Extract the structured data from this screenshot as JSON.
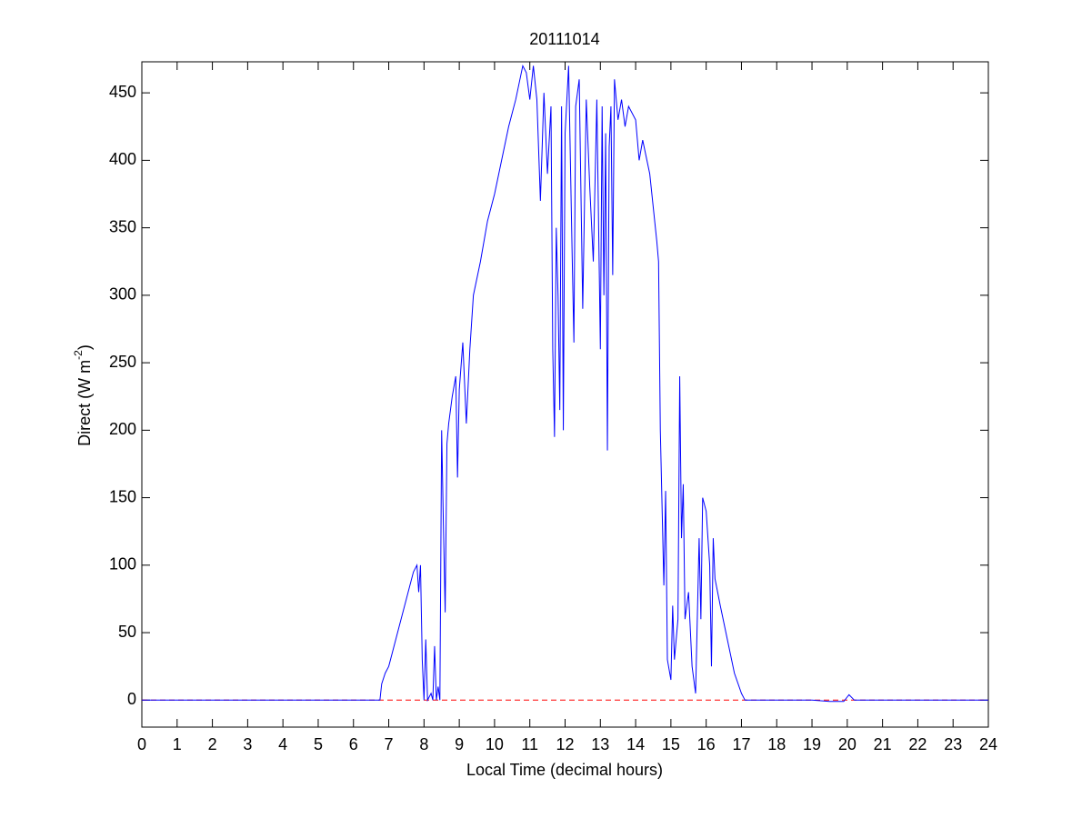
{
  "chart_data": {
    "type": "line",
    "title": "20111014",
    "xlabel": "Local Time (decimal hours)",
    "ylabel": {
      "text": "Direct (W m",
      "sup": "-2",
      "end": ")"
    },
    "color": "#0000ff",
    "x": [
      0,
      0.5,
      1,
      1.5,
      2,
      2.5,
      3,
      3.5,
      4,
      4.5,
      5,
      5.5,
      6,
      6.5,
      6.75,
      6.8,
      6.9,
      7.0,
      7.1,
      7.3,
      7.5,
      7.7,
      7.8,
      7.85,
      7.9,
      7.95,
      8.0,
      8.05,
      8.1,
      8.2,
      8.25,
      8.3,
      8.35,
      8.4,
      8.45,
      8.5,
      8.55,
      8.6,
      8.65,
      8.7,
      8.8,
      8.9,
      8.95,
      9.0,
      9.1,
      9.2,
      9.3,
      9.4,
      9.6,
      9.8,
      10.0,
      10.2,
      10.4,
      10.6,
      10.8,
      10.9,
      11.0,
      11.1,
      11.2,
      11.3,
      11.4,
      11.5,
      11.6,
      11.65,
      11.7,
      11.75,
      11.8,
      11.85,
      11.9,
      11.95,
      12.0,
      12.1,
      12.2,
      12.25,
      12.3,
      12.4,
      12.5,
      12.6,
      12.7,
      12.8,
      12.9,
      13.0,
      13.05,
      13.1,
      13.15,
      13.2,
      13.25,
      13.3,
      13.35,
      13.4,
      13.5,
      13.6,
      13.7,
      13.8,
      14.0,
      14.1,
      14.2,
      14.4,
      14.6,
      14.65,
      14.7,
      14.8,
      14.85,
      14.9,
      15.0,
      15.05,
      15.1,
      15.2,
      15.25,
      15.3,
      15.35,
      15.4,
      15.5,
      15.6,
      15.7,
      15.8,
      15.85,
      15.9,
      16.0,
      16.1,
      16.15,
      16.2,
      16.25,
      16.4,
      16.6,
      16.8,
      17.0,
      17.1,
      17.5,
      18,
      18.5,
      19,
      19.5,
      19.9,
      20.05,
      20.2,
      20.5,
      21,
      21.5,
      22,
      22.5,
      23,
      23.5,
      24
    ],
    "values": [
      0,
      0,
      0,
      0,
      0,
      0,
      0,
      0,
      0,
      0,
      0,
      0,
      0,
      0,
      0,
      12,
      20,
      25,
      35,
      55,
      75,
      95,
      100,
      80,
      100,
      30,
      0,
      45,
      0,
      5,
      0,
      40,
      0,
      10,
      0,
      200,
      130,
      65,
      190,
      205,
      225,
      240,
      165,
      230,
      265,
      205,
      260,
      300,
      325,
      355,
      375,
      400,
      425,
      445,
      470,
      465,
      445,
      470,
      445,
      370,
      450,
      390,
      440,
      260,
      195,
      350,
      300,
      215,
      440,
      200,
      420,
      470,
      330,
      265,
      440,
      460,
      290,
      445,
      380,
      325,
      445,
      260,
      440,
      300,
      420,
      185,
      410,
      440,
      315,
      460,
      430,
      445,
      425,
      440,
      430,
      400,
      415,
      390,
      340,
      325,
      200,
      85,
      155,
      30,
      15,
      70,
      30,
      60,
      240,
      120,
      160,
      60,
      80,
      25,
      5,
      120,
      60,
      150,
      140,
      100,
      25,
      120,
      90,
      70,
      45,
      20,
      5,
      0,
      0,
      0,
      0,
      0,
      -1,
      -1,
      4,
      0,
      0,
      0,
      0,
      0,
      0,
      0,
      0,
      0
    ],
    "reference_line": {
      "value": 0,
      "color": "#ff0000",
      "style": "dashed"
    },
    "xlim": [
      0,
      24
    ],
    "ylim": [
      -20,
      473
    ],
    "xticks": [
      0,
      1,
      2,
      3,
      4,
      5,
      6,
      7,
      8,
      9,
      10,
      11,
      12,
      13,
      14,
      15,
      16,
      17,
      18,
      19,
      20,
      21,
      22,
      23,
      24
    ],
    "yticks": [
      0,
      50,
      100,
      150,
      200,
      250,
      300,
      350,
      400,
      450
    ],
    "grid": false
  }
}
